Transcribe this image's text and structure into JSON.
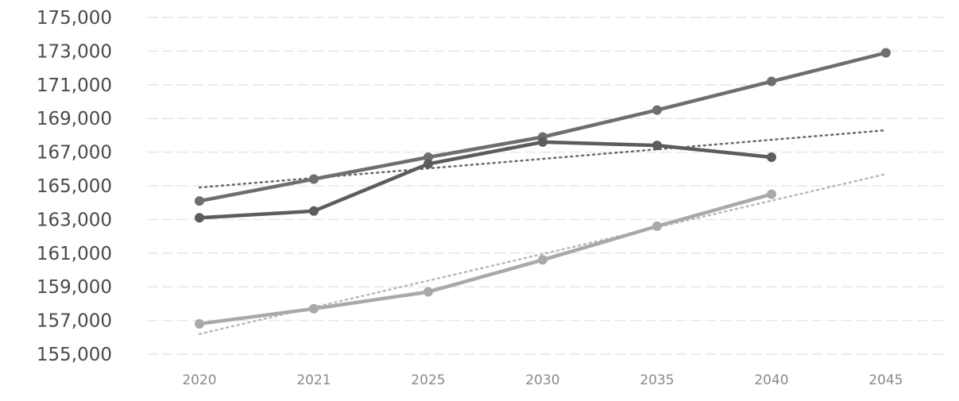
{
  "chart_data": {
    "type": "line",
    "title": "",
    "xlabel": "",
    "ylabel": "",
    "categories": [
      "2020",
      "2021",
      "2025",
      "2030",
      "2035",
      "2040",
      "2045"
    ],
    "ylim": [
      155000,
      175000
    ],
    "yticks": [
      155000,
      157000,
      159000,
      161000,
      163000,
      165000,
      167000,
      169000,
      171000,
      173000,
      175000
    ],
    "ytick_labels": [
      "155,000",
      "157,000",
      "159,000",
      "161,000",
      "163,000",
      "165,000",
      "167,000",
      "169,000",
      "171,000",
      "173,000",
      "175,000"
    ],
    "grid": true,
    "legend": "none",
    "series": [
      {
        "values": [
          164100,
          165400,
          166700,
          167900,
          169500,
          171200,
          172900
        ],
        "color": "#6e6e6e"
      },
      {
        "values": [
          163100,
          163500,
          166300,
          167600,
          167400,
          166700,
          null
        ],
        "color": "#5c5c5c"
      },
      {
        "values": [
          156800,
          157700,
          158700,
          160600,
          162600,
          164500,
          null
        ],
        "color": "#a9a9a9"
      }
    ],
    "trendlines": [
      {
        "x_range": [
          0,
          6
        ],
        "y": [
          164900,
          168300
        ],
        "style": "dotted",
        "color": "#6a6a6a"
      },
      {
        "x_range": [
          0,
          6
        ],
        "y": [
          156200,
          165700
        ],
        "style": "dotted",
        "color": "#b8b8b8"
      }
    ]
  }
}
